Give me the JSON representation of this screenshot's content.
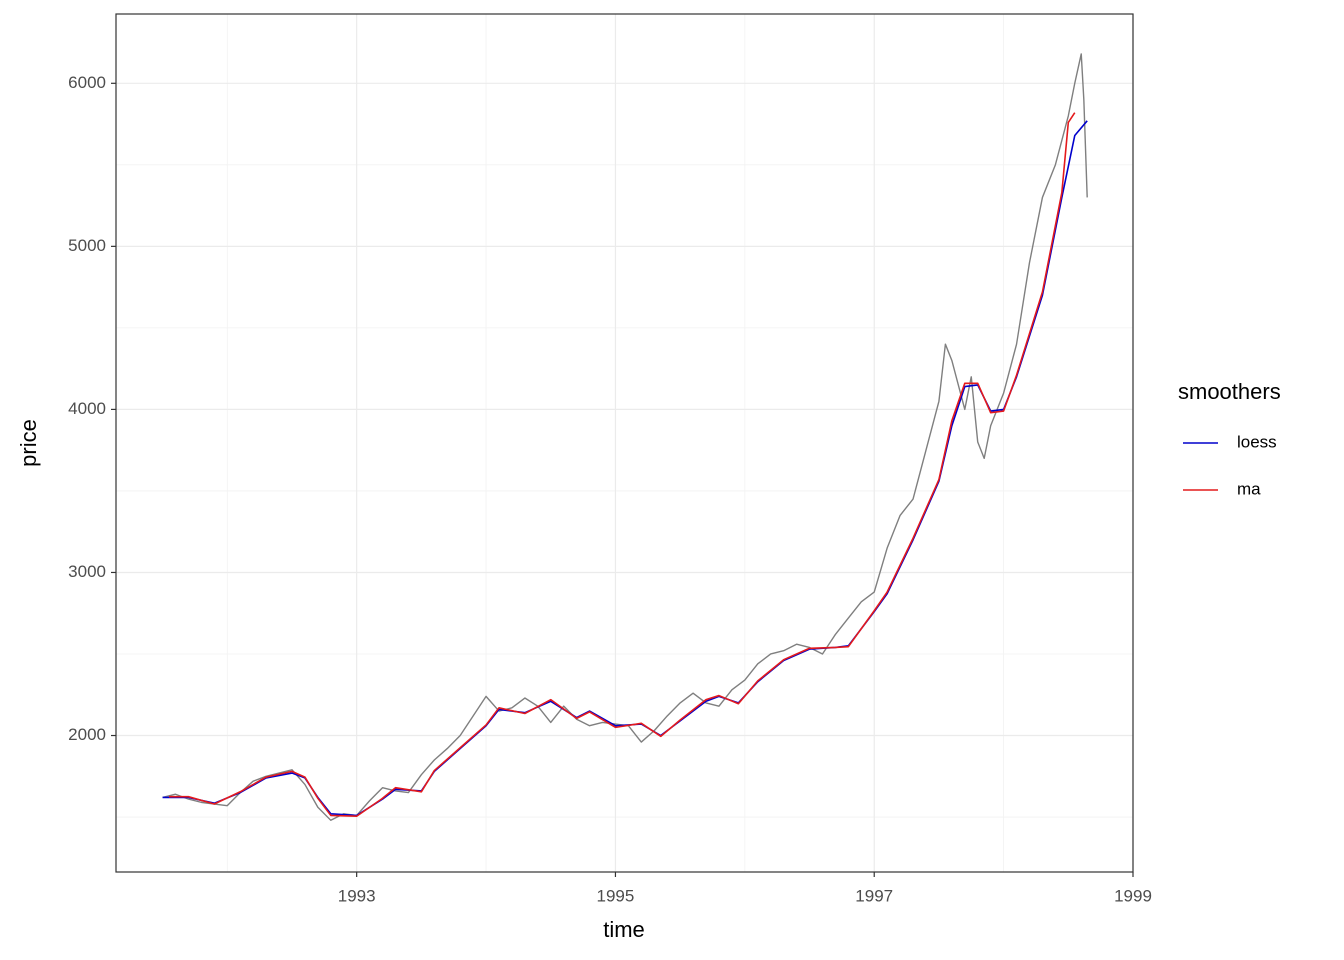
{
  "chart_data": {
    "type": "line",
    "x_label": "time",
    "y_label": "price",
    "legend_title": "smoothers",
    "legend_position": "right",
    "grid": true,
    "xlim": [
      1991.14,
      1999.0
    ],
    "ylim": [
      1163,
      6425
    ],
    "xticks": [
      1993,
      1995,
      1997,
      1999
    ],
    "yticks": [
      2000,
      3000,
      4000,
      5000,
      6000
    ],
    "xminorticks": [
      1992,
      1994,
      1996,
      1998
    ],
    "yminorticks": [
      1500,
      2500,
      3500,
      4500,
      5500
    ],
    "series": [
      {
        "color": "#7f7f7f",
        "x": [
          1991.5,
          1991.6,
          1991.7,
          1991.8,
          1991.9,
          1992.0,
          1992.1,
          1992.2,
          1992.3,
          1992.4,
          1992.5,
          1992.6,
          1992.7,
          1992.8,
          1992.9,
          1993.0,
          1993.1,
          1993.2,
          1993.3,
          1993.4,
          1993.5,
          1993.6,
          1993.7,
          1993.8,
          1993.9,
          1994.0,
          1994.1,
          1994.2,
          1994.3,
          1994.4,
          1994.5,
          1994.6,
          1994.7,
          1994.8,
          1994.9,
          1995.0,
          1995.1,
          1995.2,
          1995.3,
          1995.4,
          1995.5,
          1995.6,
          1995.7,
          1995.8,
          1995.9,
          1996.0,
          1996.1,
          1996.2,
          1996.3,
          1996.4,
          1996.5,
          1996.6,
          1996.7,
          1996.8,
          1996.9,
          1997.0,
          1997.1,
          1997.2,
          1997.3,
          1997.4,
          1997.5,
          1997.55,
          1997.6,
          1997.7,
          1997.75,
          1997.8,
          1997.85,
          1997.9,
          1998.0,
          1998.1,
          1998.2,
          1998.3,
          1998.4,
          1998.5,
          1998.55,
          1998.6,
          1998.62,
          1998.646
        ],
        "values": [
          1620,
          1640,
          1610,
          1590,
          1580,
          1570,
          1650,
          1720,
          1750,
          1770,
          1790,
          1700,
          1560,
          1480,
          1520,
          1510,
          1600,
          1680,
          1660,
          1650,
          1760,
          1850,
          1920,
          2000,
          2120,
          2240,
          2150,
          2170,
          2230,
          2180,
          2080,
          2180,
          2100,
          2060,
          2080,
          2070,
          2060,
          1960,
          2030,
          2120,
          2200,
          2260,
          2200,
          2180,
          2280,
          2340,
          2440,
          2500,
          2520,
          2560,
          2540,
          2500,
          2620,
          2720,
          2820,
          2880,
          3150,
          3350,
          3450,
          3750,
          4050,
          4400,
          4300,
          4000,
          4200,
          3800,
          3700,
          3900,
          4100,
          4400,
          4900,
          5300,
          5500,
          5800,
          6000,
          6180,
          5900,
          5300
        ]
      },
      {
        "name": "loess",
        "color": "#0000cc",
        "x": [
          1991.5,
          1991.7,
          1991.9,
          1992.1,
          1992.3,
          1992.5,
          1992.6,
          1992.7,
          1992.8,
          1993.0,
          1993.2,
          1993.3,
          1993.5,
          1993.6,
          1993.8,
          1994.0,
          1994.1,
          1994.3,
          1994.5,
          1994.7,
          1994.8,
          1995.0,
          1995.2,
          1995.35,
          1995.5,
          1995.7,
          1995.8,
          1995.95,
          1996.1,
          1996.3,
          1996.5,
          1996.7,
          1996.8,
          1997.0,
          1997.1,
          1997.3,
          1997.5,
          1997.6,
          1997.7,
          1997.8,
          1997.9,
          1998.0,
          1998.1,
          1998.3,
          1998.45,
          1998.55,
          1998.646
        ],
        "values": [
          1620,
          1620,
          1585,
          1650,
          1740,
          1770,
          1740,
          1620,
          1520,
          1510,
          1610,
          1670,
          1660,
          1780,
          1920,
          2060,
          2160,
          2140,
          2210,
          2110,
          2150,
          2060,
          2070,
          2000,
          2090,
          2210,
          2240,
          2200,
          2330,
          2460,
          2530,
          2540,
          2550,
          2760,
          2870,
          3200,
          3560,
          3900,
          4140,
          4150,
          3990,
          4000,
          4200,
          4700,
          5300,
          5680,
          5770
        ]
      },
      {
        "name": "ma",
        "color": "#e41a1c",
        "x": [
          1991.55,
          1991.7,
          1991.9,
          1992.1,
          1992.3,
          1992.5,
          1992.6,
          1992.7,
          1992.8,
          1993.0,
          1993.2,
          1993.3,
          1993.5,
          1993.6,
          1993.8,
          1994.0,
          1994.1,
          1994.3,
          1994.5,
          1994.7,
          1994.8,
          1995.0,
          1995.2,
          1995.35,
          1995.5,
          1995.7,
          1995.8,
          1995.95,
          1996.1,
          1996.3,
          1996.5,
          1996.7,
          1996.8,
          1997.0,
          1997.1,
          1997.3,
          1997.5,
          1997.6,
          1997.7,
          1997.8,
          1997.9,
          1998.0,
          1998.1,
          1998.3,
          1998.45,
          1998.5,
          1998.55
        ],
        "values": [
          1625,
          1625,
          1580,
          1655,
          1745,
          1780,
          1745,
          1615,
          1510,
          1505,
          1615,
          1680,
          1655,
          1785,
          1925,
          2065,
          2170,
          2135,
          2220,
          2105,
          2145,
          2050,
          2075,
          1995,
          2095,
          2220,
          2245,
          2195,
          2335,
          2465,
          2535,
          2540,
          2545,
          2765,
          2880,
          3210,
          3570,
          3930,
          4160,
          4160,
          3980,
          3990,
          4210,
          4720,
          5330,
          5760,
          5820
        ]
      }
    ]
  }
}
